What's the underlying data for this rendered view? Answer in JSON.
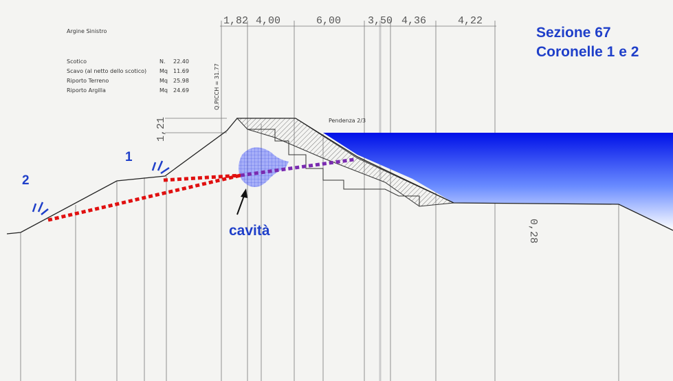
{
  "title": "Argine Sinistro",
  "table": {
    "rows": [
      [
        "Scotico",
        "N.",
        "22.40"
      ],
      [
        "Scavo (al netto dello scotico)",
        "Mq",
        "11.69"
      ],
      [
        "Riporto Terreno",
        "Mq",
        "25.98"
      ],
      [
        "Riporto Argilla",
        "Mq",
        "24.69"
      ]
    ]
  },
  "dimensions": [
    "1,82",
    "4,00",
    "6,00",
    "3,50",
    "4,36",
    "4,22"
  ],
  "height_label": "1,21",
  "elevation_label": "Q.PICCH = 31.77",
  "slope_label": "Pendenza 2/3",
  "depth_label": "0,28",
  "section": {
    "title": "Sezione 67",
    "subtitle": "Coronelle 1 e 2"
  },
  "markers": [
    "1",
    "2"
  ],
  "cavity_label": "cavità"
}
